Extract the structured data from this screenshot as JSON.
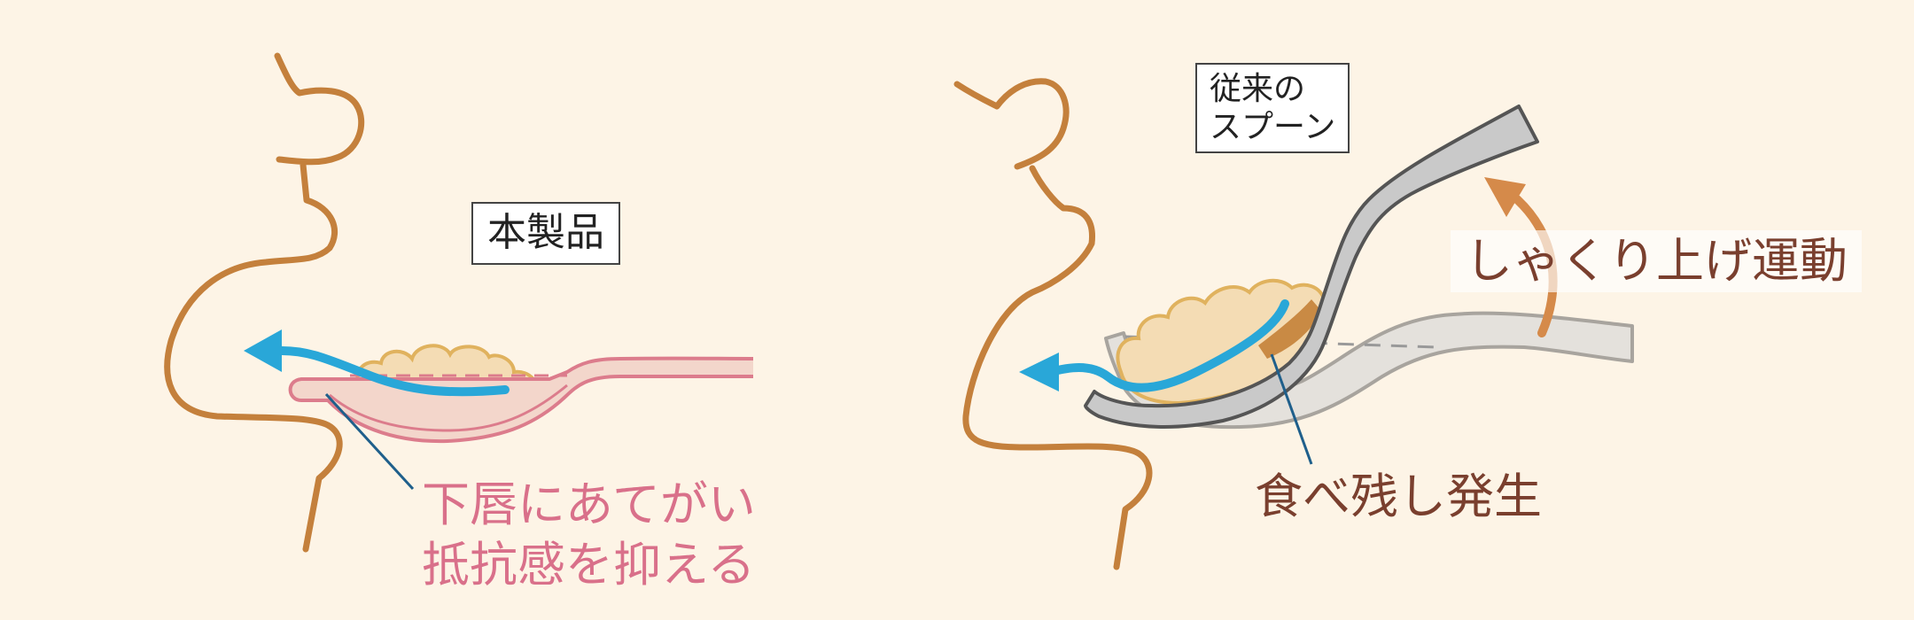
{
  "labels": {
    "product": "本製品",
    "conventional_line1": "従来の",
    "conventional_line2": "スプーン",
    "lip_note_line1": "下唇にあてがい",
    "lip_note_line2": "抵抗感を抑える",
    "leftover_note": "食べ残し発生",
    "scoop_note": "しゃくり上げ運動"
  },
  "colors": {
    "background": "#fdf4e6",
    "face_outline": "#c4803c",
    "food": "#f4dcb4",
    "food_outline": "#e0b25e",
    "product_spoon": "#f3d6cb",
    "product_spoon_outline": "#dc7c8c",
    "flow_arrow": "#29a7d8",
    "conventional_spoon": "#c9c9c9",
    "conventional_spoon_outline": "#555555",
    "scoop_arrow": "#d58a4a",
    "pink_text": "#d9708a",
    "brown_text": "#7a3f2e"
  }
}
